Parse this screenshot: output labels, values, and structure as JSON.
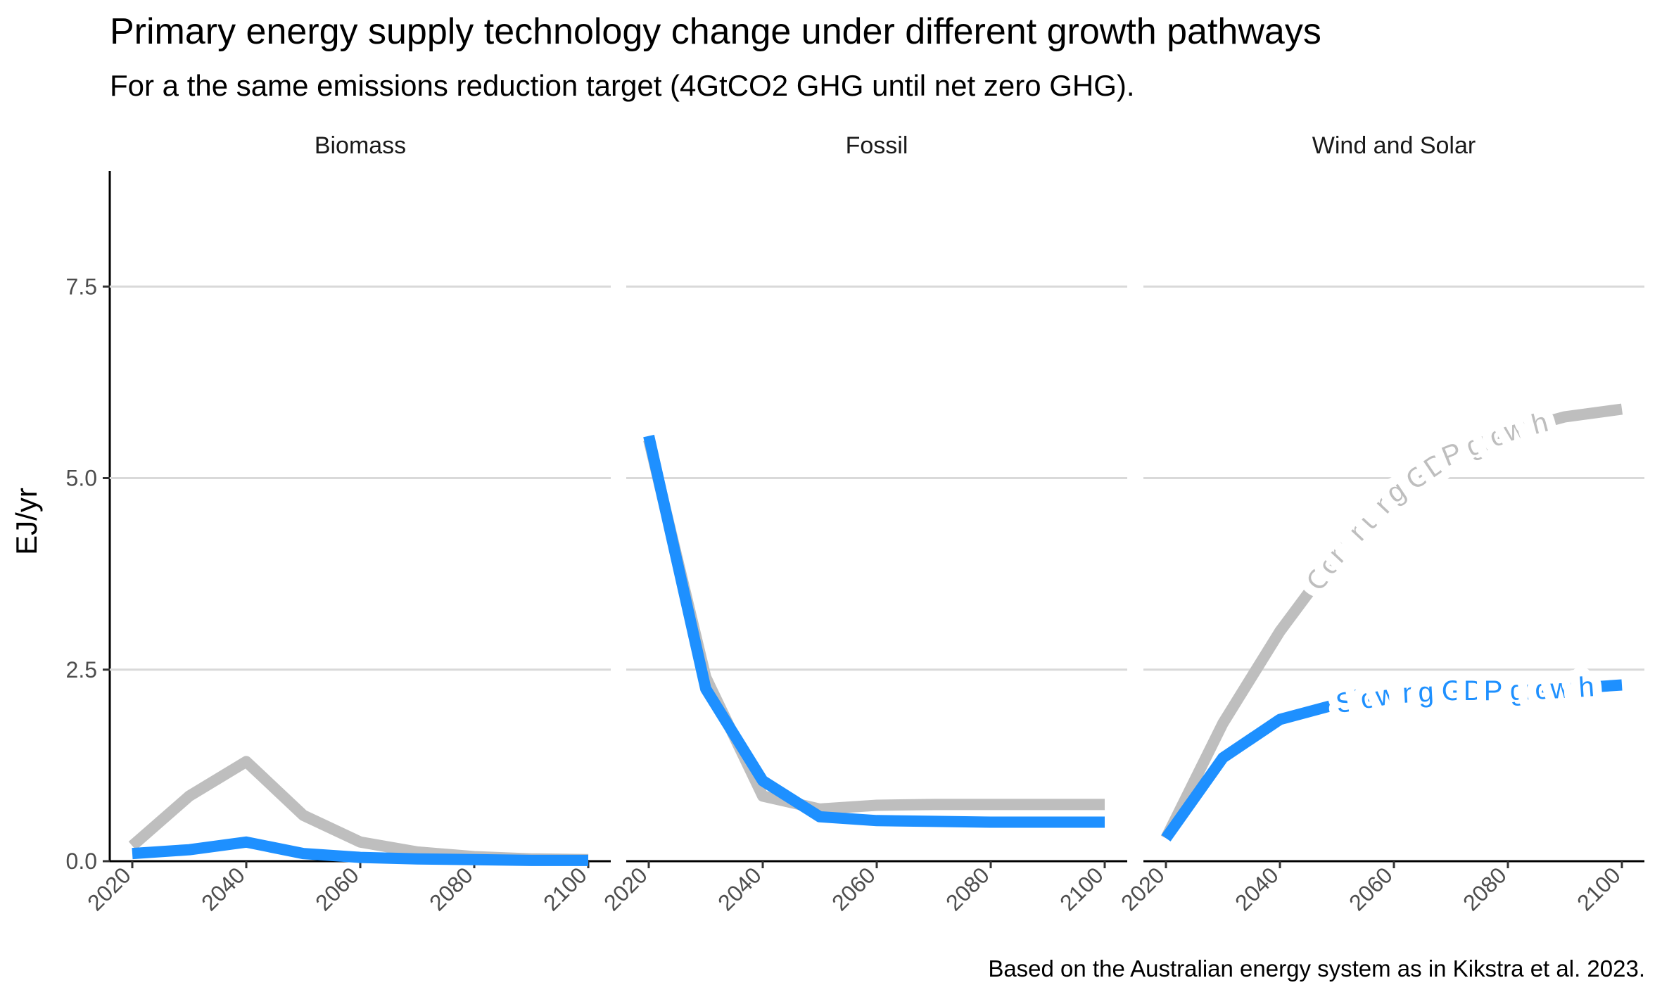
{
  "title": "Primary energy supply technology change under different growth pathways",
  "subtitle": "For a the same emissions reduction target (4GtCO2 GHG until net zero GHG).",
  "caption": "Based on the Australian energy system as in Kikstra et al. 2023.",
  "colors": {
    "continuing": "#bebebe",
    "slowing": "#1e90ff",
    "grid": "#d9d9d9"
  },
  "chart_data": {
    "type": "line",
    "facets": [
      "Biomass",
      "Fossil",
      "Wind and Solar"
    ],
    "xlim": [
      2020,
      2100
    ],
    "x_ticks": [
      "2020",
      "2040",
      "2060",
      "2080",
      "2100"
    ],
    "ylabel": "EJ/yr",
    "ylim": [
      0,
      9
    ],
    "y_ticks": [
      "0.0",
      "2.5",
      "5.0",
      "7.5"
    ],
    "grid": "horizontal major",
    "series": [
      {
        "name": "Continuing GDP growth",
        "color": "#bebebe",
        "panels": {
          "Biomass": {
            "x": [
              2020,
              2030,
              2040,
              2050,
              2060,
              2070,
              2080,
              2090,
              2100
            ],
            "y": [
              0.2,
              0.85,
              1.3,
              0.6,
              0.25,
              0.12,
              0.06,
              0.03,
              0.02
            ]
          },
          "Fossil": {
            "x": [
              2020,
              2030,
              2040,
              2050,
              2060,
              2070,
              2080,
              2090,
              2100
            ],
            "y": [
              5.5,
              2.4,
              0.85,
              0.68,
              0.73,
              0.74,
              0.74,
              0.74,
              0.74
            ]
          },
          "Wind and Solar": {
            "x": [
              2020,
              2030,
              2040,
              2050,
              2060,
              2070,
              2080,
              2090,
              2100
            ],
            "y": [
              0.3,
              1.8,
              3.0,
              4.0,
              4.8,
              5.3,
              5.6,
              5.8,
              5.9
            ]
          }
        }
      },
      {
        "name": "Slowing GDP growth",
        "color": "#1e90ff",
        "panels": {
          "Biomass": {
            "x": [
              2020,
              2030,
              2040,
              2050,
              2060,
              2070,
              2080,
              2090,
              2100
            ],
            "y": [
              0.1,
              0.15,
              0.25,
              0.1,
              0.05,
              0.03,
              0.02,
              0.01,
              0.01
            ]
          },
          "Fossil": {
            "x": [
              2020,
              2030,
              2040,
              2050,
              2060,
              2070,
              2080,
              2090,
              2100
            ],
            "y": [
              5.55,
              2.25,
              1.05,
              0.58,
              0.53,
              0.52,
              0.51,
              0.51,
              0.51
            ]
          },
          "Wind and Solar": {
            "x": [
              2020,
              2030,
              2040,
              2050,
              2060,
              2070,
              2080,
              2090,
              2100
            ],
            "y": [
              0.3,
              1.35,
              1.85,
              2.05,
              2.18,
              2.22,
              2.22,
              2.25,
              2.3
            ]
          }
        }
      }
    ],
    "annotations": [
      {
        "text": "Continuing GDP growth",
        "series": "Continuing GDP growth",
        "panel": "Wind and Solar"
      },
      {
        "text": "Slowing GDP growth",
        "series": "Slowing GDP growth",
        "panel": "Wind and Solar"
      }
    ]
  }
}
